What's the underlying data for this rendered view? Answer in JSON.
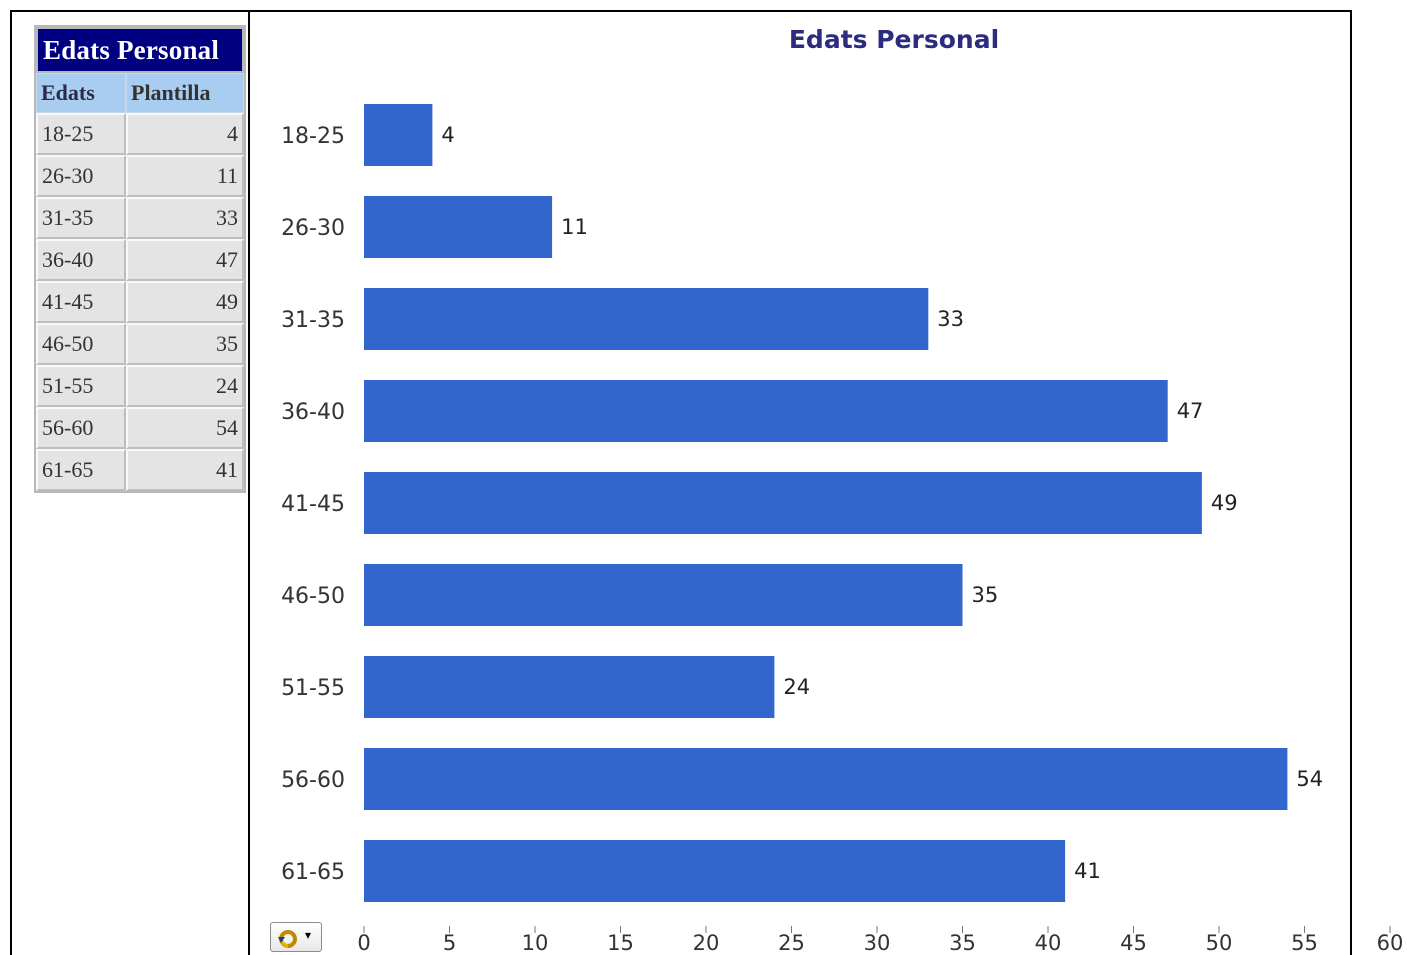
{
  "table": {
    "title": "Edats Personal",
    "headers": [
      "Edats",
      "Plantilla"
    ],
    "rows": [
      [
        "18-25",
        "4"
      ],
      [
        "26-30",
        "11"
      ],
      [
        "31-35",
        "33"
      ],
      [
        "36-40",
        "47"
      ],
      [
        "41-45",
        "49"
      ],
      [
        "46-50",
        "35"
      ],
      [
        "51-55",
        "24"
      ],
      [
        "56-60",
        "54"
      ],
      [
        "61-65",
        "41"
      ]
    ]
  },
  "chart_data": {
    "type": "bar",
    "orientation": "horizontal",
    "title": "Edats Personal",
    "categories": [
      "18-25",
      "26-30",
      "31-35",
      "36-40",
      "41-45",
      "46-50",
      "51-55",
      "56-60",
      "61-65"
    ],
    "values": [
      4,
      11,
      33,
      47,
      49,
      35,
      24,
      54,
      41
    ],
    "xlim": [
      0,
      60
    ],
    "xticks": [
      0,
      5,
      10,
      15,
      20,
      25,
      30,
      35,
      40,
      45,
      50,
      55,
      60
    ],
    "data_labels": true,
    "grid": false,
    "legend": "none",
    "bar_color": "#3366cc",
    "title_color": "#2b2b80"
  },
  "colors": {
    "table_title_bg": "#000080",
    "table_header_bg": "#a9cdf0",
    "table_cell_bg": "#e4e4e4"
  },
  "icons": {
    "action_button": "refresh-dropdown-icon"
  }
}
